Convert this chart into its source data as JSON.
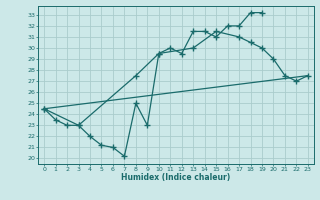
{
  "xlabel": "Humidex (Indice chaleur)",
  "bg_color": "#cce8e8",
  "grid_color": "#aacccc",
  "line_color": "#1a6b6b",
  "xlim": [
    -0.5,
    23.5
  ],
  "ylim": [
    19.5,
    33.8
  ],
  "yticks": [
    20,
    21,
    22,
    23,
    24,
    25,
    26,
    27,
    28,
    29,
    30,
    31,
    32,
    33
  ],
  "xticks": [
    0,
    1,
    2,
    3,
    4,
    5,
    6,
    7,
    8,
    9,
    10,
    11,
    12,
    13,
    14,
    15,
    16,
    17,
    18,
    19,
    20,
    21,
    22,
    23
  ],
  "series1_x": [
    0,
    1,
    2,
    3,
    4,
    5,
    6,
    7,
    8,
    9,
    10,
    11,
    12,
    13,
    14,
    15,
    16,
    17,
    18,
    19
  ],
  "series1_y": [
    24.5,
    23.5,
    23.0,
    23.0,
    22.0,
    21.2,
    21.0,
    20.2,
    25.0,
    23.0,
    29.5,
    30.0,
    29.5,
    31.5,
    31.5,
    31.0,
    32.0,
    32.0,
    33.2,
    33.2
  ],
  "series2_x": [
    0,
    3,
    8,
    10,
    13,
    15,
    17,
    18,
    19,
    20,
    21,
    22,
    23
  ],
  "series2_y": [
    24.5,
    23.0,
    27.5,
    29.5,
    30.0,
    31.5,
    31.0,
    30.5,
    30.0,
    29.0,
    27.5,
    27.0,
    27.5
  ],
  "series3_x": [
    0,
    23
  ],
  "series3_y": [
    24.5,
    27.5
  ]
}
